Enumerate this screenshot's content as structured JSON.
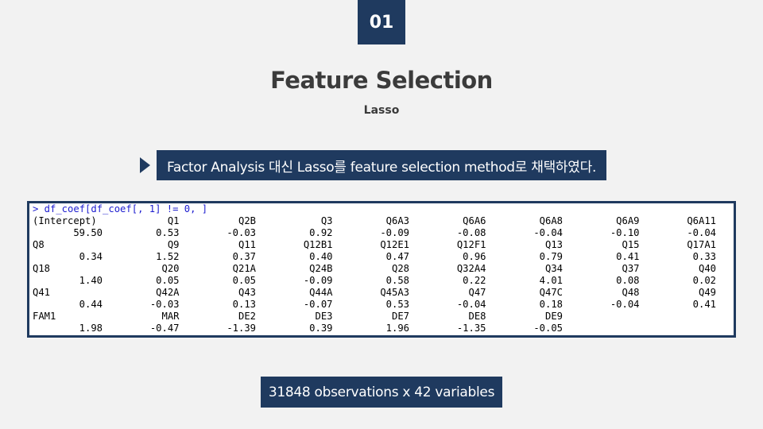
{
  "slide": {
    "section_number": "01",
    "title": "Feature Selection",
    "subtitle": "Lasso",
    "note": "Factor Analysis 대신 Lasso를 feature selection method로 채택하였다.",
    "footer": "31848 observations x 42 variables"
  },
  "console": {
    "command": "> df_coef[df_coef[, 1] != 0, ]",
    "rows": [
      {
        "kind": "lbl",
        "cells": [
          "(Intercept)",
          "Q1",
          "Q2B",
          "Q3",
          "Q6A3",
          "Q6A6",
          "Q6A8",
          "Q6A9",
          "Q6A11"
        ]
      },
      {
        "kind": "num",
        "cells": [
          "59.50",
          "0.53",
          "-0.03",
          "0.92",
          "-0.09",
          "-0.08",
          "-0.04",
          "-0.10",
          "-0.04"
        ]
      },
      {
        "kind": "lbl",
        "cells": [
          "Q8",
          "Q9",
          "Q11",
          "Q12B1",
          "Q12E1",
          "Q12F1",
          "Q13",
          "Q15",
          "Q17A1"
        ]
      },
      {
        "kind": "num",
        "cells": [
          "0.34",
          "1.52",
          "0.37",
          "0.40",
          "0.47",
          "0.96",
          "0.79",
          "0.41",
          "0.33"
        ]
      },
      {
        "kind": "lbl",
        "cells": [
          "Q18",
          "Q20",
          "Q21A",
          "Q24B",
          "Q28",
          "Q32A4",
          "Q34",
          "Q37",
          "Q40"
        ]
      },
      {
        "kind": "num",
        "cells": [
          "1.40",
          "0.05",
          "0.05",
          "-0.09",
          "0.58",
          "0.22",
          "4.01",
          "0.08",
          "0.02"
        ]
      },
      {
        "kind": "lbl",
        "cells": [
          "Q41",
          "Q42A",
          "Q43",
          "Q44A",
          "Q45A3",
          "Q47",
          "Q47C",
          "Q48",
          "Q49"
        ]
      },
      {
        "kind": "num",
        "cells": [
          "0.44",
          "-0.03",
          "0.13",
          "-0.07",
          "0.53",
          "-0.04",
          "0.18",
          "-0.04",
          "0.41"
        ]
      },
      {
        "kind": "lbl",
        "cells": [
          "FAM1",
          "MAR",
          "DE2",
          "DE3",
          "DE7",
          "DE8",
          "DE9"
        ]
      },
      {
        "kind": "num",
        "cells": [
          "1.98",
          "-0.47",
          "-1.39",
          "0.39",
          "1.96",
          "-1.35",
          "-0.05"
        ]
      }
    ]
  }
}
